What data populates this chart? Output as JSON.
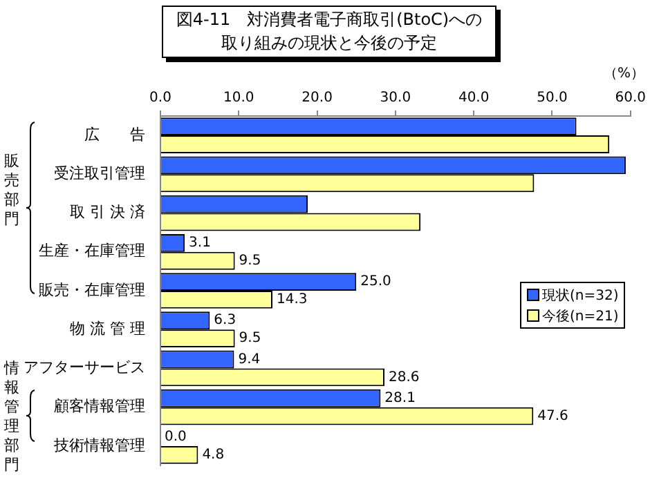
{
  "chart_data": {
    "type": "bar",
    "orientation": "horizontal",
    "title": "図4-11　対消費者電子商取引(BtoC)への取り組みの現状と今後の予定",
    "xlabel": "（%）",
    "categories": [
      "広　　告",
      "受注取引管理",
      "取 引 決 済",
      "生産・在庫管理",
      "販売・在庫管理",
      "物 流 管 理",
      "アフターサービス",
      "顧客情報管理",
      "技術情報管理"
    ],
    "series": [
      {
        "name": "現状(n=32)",
        "color": "#3366ff",
        "values": [
          53.1,
          59.4,
          18.8,
          3.1,
          25.0,
          6.3,
          9.4,
          28.1,
          0.0
        ],
        "value_labels": [
          null,
          null,
          null,
          "3.1",
          "25.0",
          "6.3",
          "9.4",
          "28.1",
          "0.0"
        ]
      },
      {
        "name": "今後(n=21)",
        "color": "#ffff99",
        "values": [
          57.3,
          47.7,
          33.2,
          9.5,
          14.3,
          9.5,
          28.6,
          47.6,
          4.8
        ],
        "value_labels": [
          null,
          null,
          null,
          "9.5",
          "14.3",
          "9.5",
          "28.6",
          "47.6",
          "4.8"
        ]
      }
    ],
    "xlim": [
      0,
      60
    ],
    "xticks": [
      {
        "value": 0,
        "label": "0.0"
      },
      {
        "value": 10,
        "label": "10.0"
      },
      {
        "value": 20,
        "label": "20.0"
      },
      {
        "value": 30,
        "label": "30.0"
      },
      {
        "value": 40,
        "label": "40.0"
      },
      {
        "value": 50,
        "label": "50.0"
      },
      {
        "value": 60,
        "label": "60.0"
      }
    ],
    "grid": false,
    "legend": "right",
    "annotations": [
      "販売部門",
      "情報管理部門"
    ]
  }
}
